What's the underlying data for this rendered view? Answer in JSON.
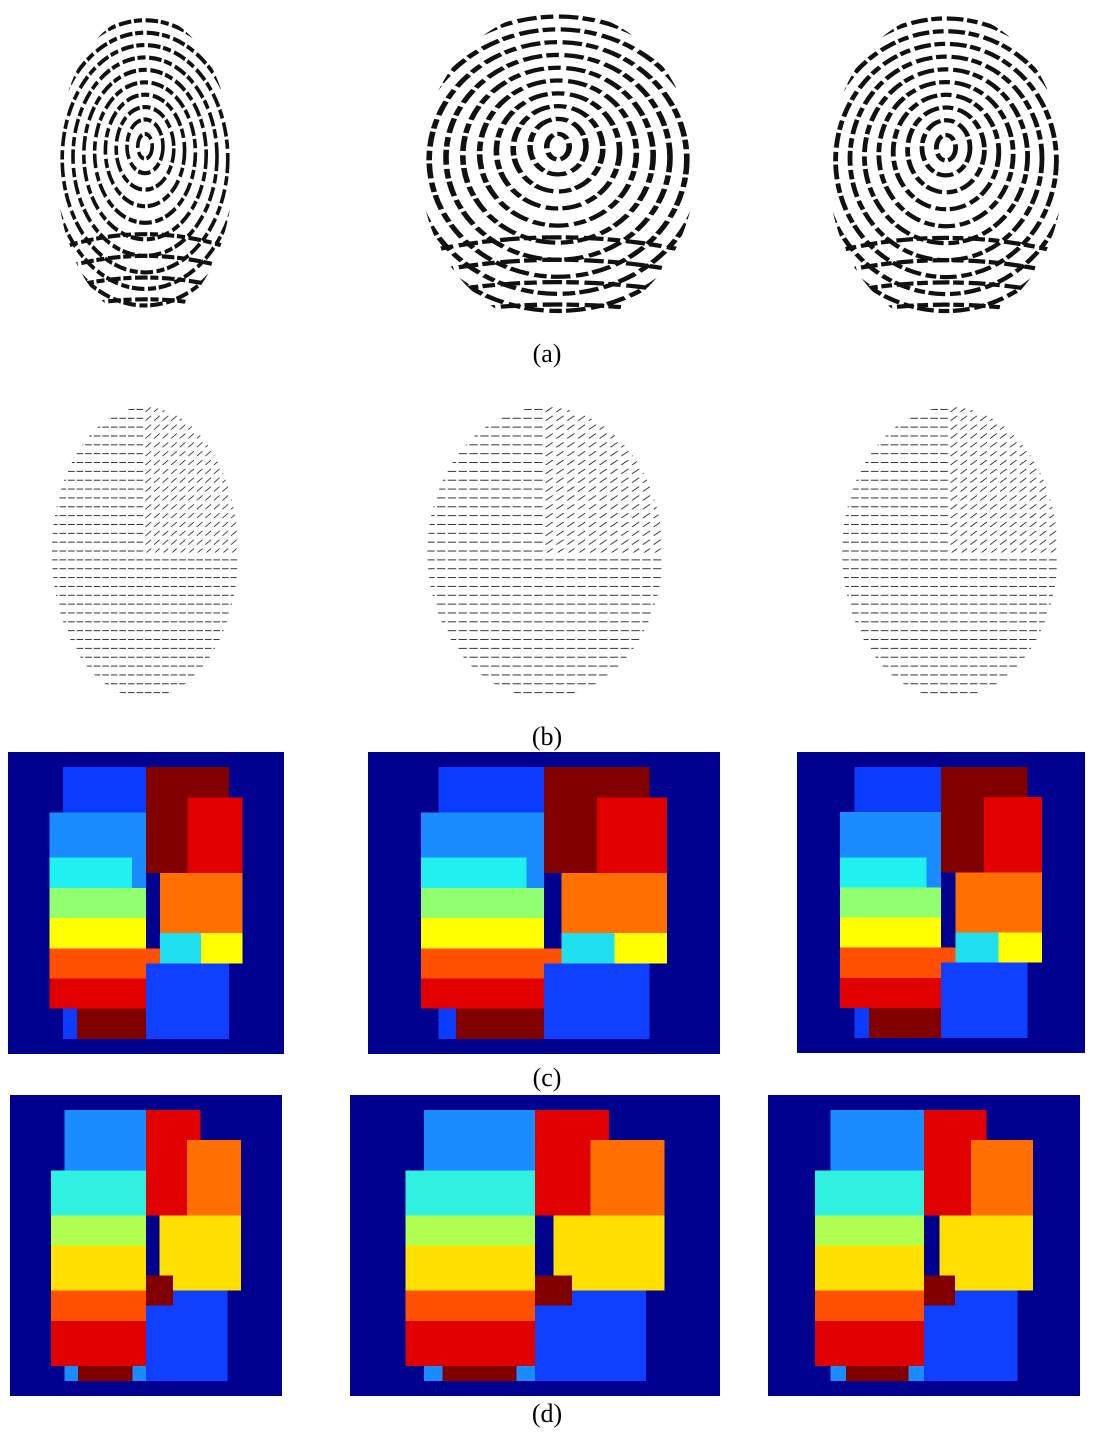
{
  "rows": [
    {
      "label": "(a)"
    },
    {
      "label": "(b)"
    },
    {
      "label": "(c)"
    },
    {
      "label": "(d)"
    }
  ]
}
